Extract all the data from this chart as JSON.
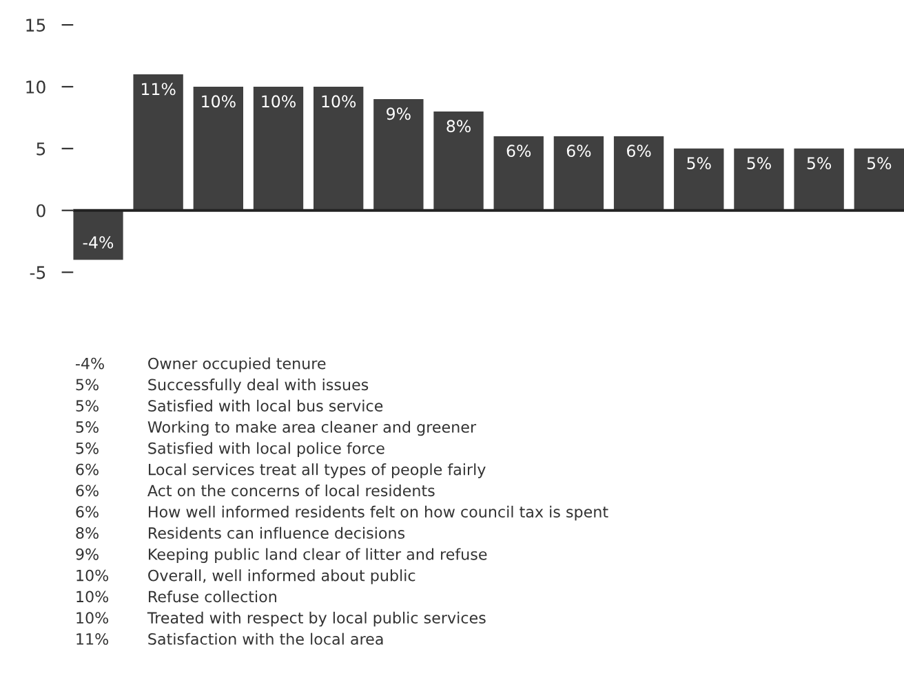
{
  "chart_data": {
    "type": "bar",
    "categories": [
      null,
      null,
      null,
      null,
      null,
      null,
      null,
      null,
      null,
      null,
      null,
      null,
      null,
      null
    ],
    "series": [
      {
        "color": "#404040",
        "values": [
          -4,
          11,
          10,
          10,
          10,
          9,
          8,
          6,
          6,
          6,
          5,
          5,
          5,
          5
        ],
        "value_labels": [
          "-4%",
          "11%",
          "10%",
          "10%",
          "10%",
          "9%",
          "8%",
          "6%",
          "6%",
          "6%",
          "5%",
          "5%",
          "5%",
          "5%"
        ]
      }
    ],
    "ylim": [
      -5,
      15
    ],
    "yticks": [
      -5,
      0,
      5,
      10,
      15
    ],
    "grid": false,
    "legend": false,
    "ref_lines": [
      {
        "axis": "y",
        "value": 0,
        "color": "#222222"
      }
    ],
    "annotations": [
      "-4%\tOwner occupied tenure",
      "5%\tSuccessfully deal with issues",
      "5%\tSatisfied with local bus service",
      "5%\tWorking to make area cleaner and greener",
      "5%\tSatisfied with local police force",
      "6%\tLocal services treat all types of people fairly",
      "6%\tAct on the concerns of local residents",
      "6%\tHow well informed residents felt on how council tax is spent",
      "8%\tResidents can influence decisions",
      "9%\tKeeping public land clear of litter and refuse",
      "10%\tOverall, well informed about public",
      "10%\tRefuse collection",
      "10%\tTreated with respect by local public services",
      "11%\tSatisfaction with the local area"
    ]
  }
}
